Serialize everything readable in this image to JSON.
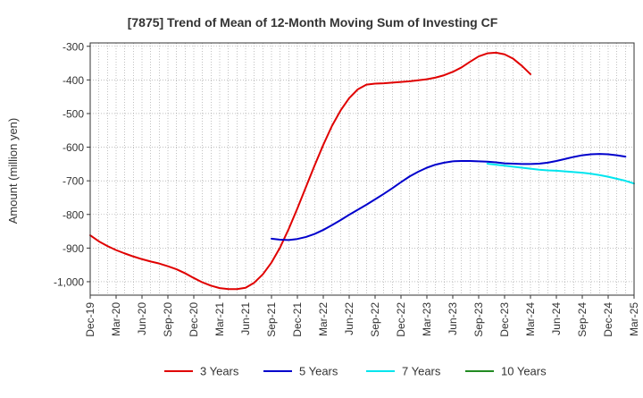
{
  "chart_data": {
    "type": "line",
    "title": "[7875]  Trend of Mean of 12-Month Moving Sum of Investing CF",
    "xlabel": "",
    "ylabel": "Amount (million yen)",
    "ylim": [
      -1040,
      -290
    ],
    "y_ticks": [
      -300,
      -400,
      -500,
      -600,
      -700,
      -800,
      -900,
      -1000
    ],
    "y_tick_labels": [
      "-300",
      "-400",
      "-500",
      "-600",
      "-700",
      "-800",
      "-900",
      "-1,000"
    ],
    "x_tick_labels": [
      "Dec-19",
      "Mar-20",
      "Jun-20",
      "Sep-20",
      "Dec-20",
      "Mar-21",
      "Jun-21",
      "Sep-21",
      "Dec-21",
      "Mar-22",
      "Jun-22",
      "Sep-22",
      "Dec-22",
      "Mar-23",
      "Jun-23",
      "Sep-23",
      "Dec-23",
      "Mar-24",
      "Jun-24",
      "Sep-24",
      "Dec-24",
      "Mar-25"
    ],
    "grid": true,
    "legend_position": "bottom",
    "series": [
      {
        "name": "3 Years",
        "color": "#e00000",
        "start_index": 0,
        "values": [
          -862,
          -880,
          -894,
          -906,
          -916,
          -925,
          -933,
          -940,
          -946,
          -954,
          -963,
          -975,
          -989,
          -1002,
          -1012,
          -1019,
          -1022,
          -1022,
          -1018,
          -1003,
          -978,
          -943,
          -898,
          -843,
          -782,
          -718,
          -654,
          -593,
          -537,
          -491,
          -454,
          -428,
          -414,
          -411,
          -410,
          -408,
          -406,
          -404,
          -401,
          -398,
          -393,
          -386,
          -376,
          -363,
          -346,
          -330,
          -321,
          -319,
          -324,
          -337,
          -358,
          -383
        ]
      },
      {
        "name": "5 Years",
        "color": "#0000cc",
        "start_index": 21,
        "values": [
          -872,
          -875,
          -876,
          -873,
          -867,
          -858,
          -846,
          -832,
          -817,
          -801,
          -786,
          -771,
          -755,
          -739,
          -722,
          -704,
          -687,
          -673,
          -661,
          -652,
          -646,
          -642,
          -641,
          -641,
          -642,
          -643,
          -645,
          -648,
          -649,
          -650,
          -650,
          -649,
          -646,
          -641,
          -635,
          -629,
          -624,
          -621,
          -620,
          -621,
          -624,
          -628
        ]
      },
      {
        "name": "7 Years",
        "color": "#00e5ee",
        "start_index": 46,
        "values": [
          -649,
          -652,
          -655,
          -658,
          -661,
          -664,
          -667,
          -669,
          -670,
          -672,
          -674,
          -676,
          -679,
          -683,
          -688,
          -694,
          -700,
          -708
        ]
      },
      {
        "name": "10 Years",
        "color": "#228b22",
        "start_index": 0,
        "values": []
      }
    ]
  }
}
